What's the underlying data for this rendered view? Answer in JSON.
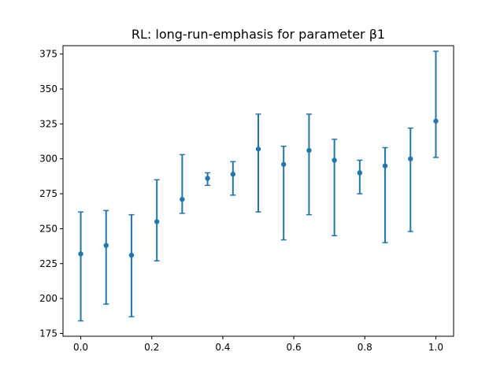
{
  "chart_data": {
    "type": "scatter",
    "title": "RL: long-run-emphasis for parameter β1",
    "xlabel": "",
    "ylabel": "",
    "xlim": [
      -0.05,
      1.05
    ],
    "ylim": [
      173,
      381
    ],
    "xticks": [
      0.0,
      0.2,
      0.4,
      0.6,
      0.8,
      1.0
    ],
    "xtick_labels": [
      "0.0",
      "0.2",
      "0.4",
      "0.6",
      "0.8",
      "1.0"
    ],
    "yticks": [
      175,
      200,
      225,
      250,
      275,
      300,
      325,
      350,
      375
    ],
    "ytick_labels": [
      "175",
      "200",
      "225",
      "250",
      "275",
      "300",
      "325",
      "350",
      "375"
    ],
    "grid": false,
    "color": "#1f77b4",
    "series": [
      {
        "x": [
          0.0,
          0.0714,
          0.1429,
          0.2143,
          0.2857,
          0.3571,
          0.4286,
          0.5,
          0.5714,
          0.6429,
          0.7143,
          0.7857,
          0.8571,
          0.9286,
          1.0
        ],
        "y": [
          232,
          238,
          231,
          255,
          271,
          286,
          289,
          307,
          296,
          306,
          299,
          290,
          295,
          300,
          327
        ],
        "y_low": [
          184,
          196,
          187,
          227,
          261,
          281,
          274,
          262,
          242,
          260,
          245,
          275,
          240,
          248,
          301
        ],
        "y_high": [
          262,
          263,
          260,
          285,
          303,
          290,
          298,
          332,
          309,
          332,
          314,
          299,
          308,
          322,
          377
        ]
      }
    ]
  }
}
